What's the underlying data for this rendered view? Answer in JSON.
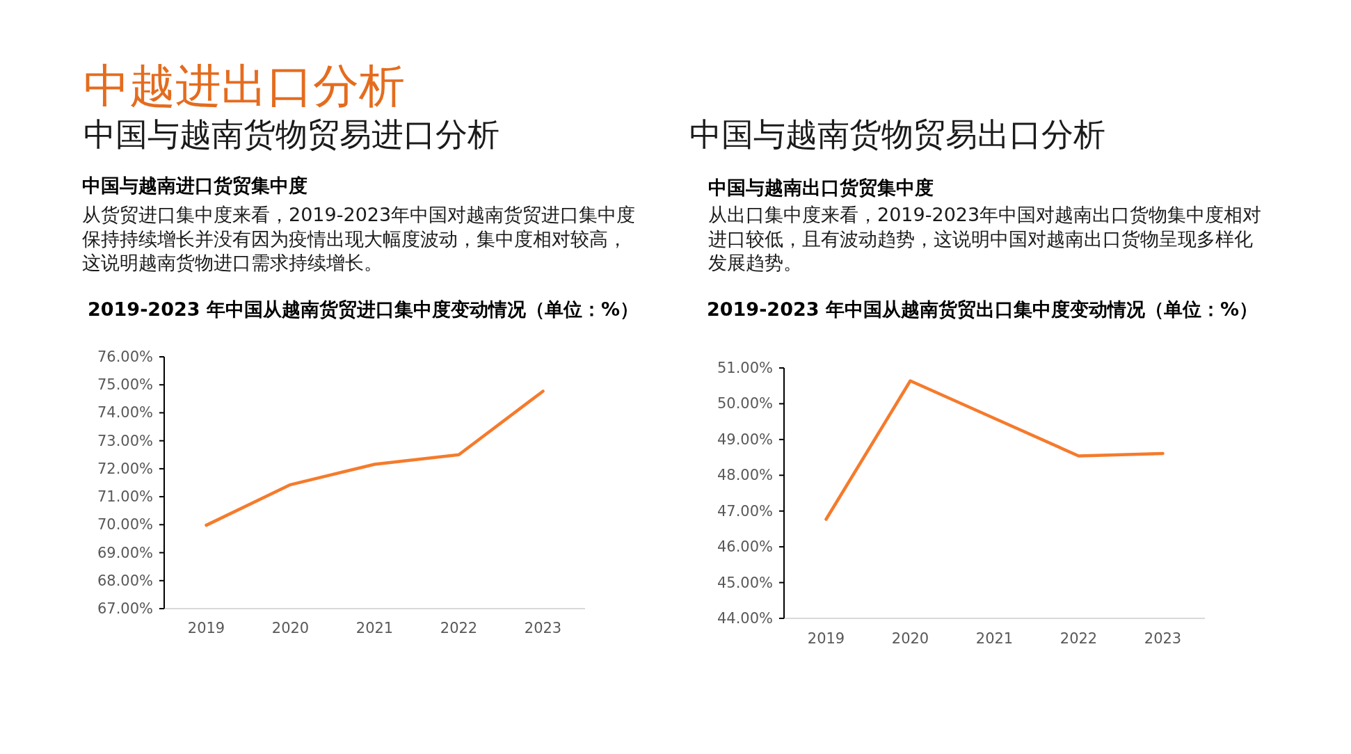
{
  "chart_data": [
    {
      "type": "line",
      "title": "2019-2023 年中国从越南货贸进口集中度变动情况（单位：%）",
      "annotations": [
        "中越进出口分析",
        "中国与越南货物贸易进口分析",
        "中国与越南进口货贸集中度",
        "从货贸进口集中度来看，2019-2023年中国对越南货贸进口集中度保持持续增长并没有因为疫情出现大幅度波动，集中度相对较高，这说明越南货物进口需求持续增长。"
      ],
      "categories": [
        "2019",
        "2020",
        "2021",
        "2022",
        "2023"
      ],
      "series": [
        {
          "color": "#f57b2c",
          "values": [
            69.98,
            71.43,
            72.16,
            72.5,
            74.77
          ]
        }
      ],
      "ylim": [
        67,
        76
      ],
      "yticks": [
        {
          "value": 67,
          "label": "67.00%"
        },
        {
          "value": 68,
          "label": "68.00%"
        },
        {
          "value": 69,
          "label": "69.00%"
        },
        {
          "value": 70,
          "label": "70.00%"
        },
        {
          "value": 71,
          "label": "71.00%"
        },
        {
          "value": 72,
          "label": "72.00%"
        },
        {
          "value": 73,
          "label": "73.00%"
        },
        {
          "value": 74,
          "label": "74.00%"
        },
        {
          "value": 75,
          "label": "75.00%"
        },
        {
          "value": 76,
          "label": "76.00%"
        }
      ]
    },
    {
      "type": "line",
      "title": "2019-2023 年中国从越南货贸出口集中度变动情况（单位：%）",
      "annotations": [
        "中国与越南货物贸易出口分析",
        "中国与越南出口货贸集中度",
        "从出口集中度来看，2019-2023年中国对越南出口货物集中度相对进口较低，且有波动趋势，这说明中国对越南出口货物呈现多样化发展趋势。"
      ],
      "categories": [
        "2019",
        "2020",
        "2021",
        "2022",
        "2023"
      ],
      "series": [
        {
          "color": "#f57b2c",
          "values": [
            46.77,
            50.64,
            49.59,
            48.54,
            48.61
          ]
        }
      ],
      "ylim": [
        44,
        51
      ],
      "yticks": [
        {
          "value": 44,
          "label": "44.00%"
        },
        {
          "value": 45,
          "label": "45.00%"
        },
        {
          "value": 46,
          "label": "46.00%"
        },
        {
          "value": 47,
          "label": "47.00%"
        },
        {
          "value": 48,
          "label": "48.00%"
        },
        {
          "value": 49,
          "label": "49.00%"
        },
        {
          "value": 50,
          "label": "50.00%"
        },
        {
          "value": 51,
          "label": "51.00%"
        }
      ]
    }
  ]
}
